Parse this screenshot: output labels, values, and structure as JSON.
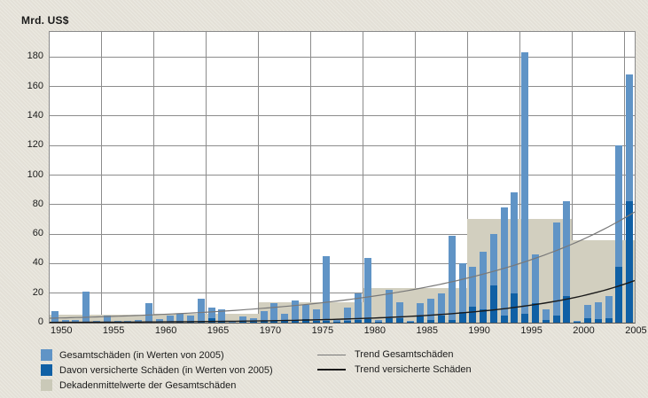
{
  "chart_title": "Mrd. US$",
  "colors": {
    "background": "#e7e4da",
    "plot_background": "#ffffff",
    "grid": "#8c8c8c",
    "bar_total": "#6094c6",
    "bar_insured": "#1060a5",
    "decade_block": "#d2cfbf",
    "trend_total": "#787878",
    "trend_insured": "#1a1a1a",
    "text": "#1a1a1a"
  },
  "legend": {
    "items": [
      {
        "label": "Gesamtschäden (in Werten von 2005)",
        "type": "swatch",
        "color": "#6094c6"
      },
      {
        "label": "Davon versicherte Schäden (in Werten von 2005)",
        "type": "swatch",
        "color": "#1060a5"
      },
      {
        "label": "Dekadenmittelwerte der Gesamtschäden",
        "type": "swatch",
        "color": "#cac9b8"
      },
      {
        "label": "Trend Gesamtschäden",
        "type": "line",
        "color": "#787878"
      },
      {
        "label": "Trend versicherte Schäden",
        "type": "line",
        "color": "#1a1a1a"
      }
    ]
  },
  "chart_data": {
    "type": "bar",
    "title": "Mrd. US$",
    "ylabel": "Mrd. US$",
    "xlabel": "",
    "grid": true,
    "legend_position": "bottom",
    "ylim": [
      0,
      197
    ],
    "yticks": [
      0,
      20,
      40,
      60,
      80,
      100,
      120,
      140,
      160,
      180
    ],
    "xticks": [
      1950,
      1955,
      1960,
      1965,
      1970,
      1975,
      1980,
      1985,
      1990,
      1995,
      2000,
      2005
    ],
    "years": [
      1950,
      1951,
      1952,
      1953,
      1954,
      1955,
      1956,
      1957,
      1958,
      1959,
      1960,
      1961,
      1962,
      1963,
      1964,
      1965,
      1966,
      1967,
      1968,
      1969,
      1970,
      1971,
      1972,
      1973,
      1974,
      1975,
      1976,
      1977,
      1978,
      1979,
      1980,
      1981,
      1982,
      1983,
      1984,
      1985,
      1986,
      1987,
      1988,
      1989,
      1990,
      1991,
      1992,
      1993,
      1994,
      1995,
      1996,
      1997,
      1998,
      1999,
      2000,
      2001,
      2002,
      2003,
      2004,
      2005
    ],
    "series": [
      {
        "name": "Gesamtschäden (in Werten von 2005)",
        "values": [
          8,
          2,
          2,
          21,
          1.5,
          5,
          1,
          1,
          2,
          13,
          2.5,
          5,
          6,
          5,
          16,
          10,
          9,
          1.5,
          4,
          3,
          8,
          13,
          6,
          15,
          12,
          9,
          45,
          2,
          10,
          20,
          44,
          2,
          22,
          14,
          1.5,
          13,
          16,
          20,
          59,
          40,
          38,
          48,
          60,
          78,
          88,
          183,
          46,
          9,
          68,
          82,
          1.5,
          12,
          14,
          18,
          120,
          168
        ]
      },
      {
        "name": "Davon versicherte Schäden (in Werten von 2005)",
        "values": [
          0,
          0,
          0,
          0,
          0,
          0,
          0,
          0,
          0,
          0.3,
          0.2,
          0.3,
          0.5,
          0.4,
          0.6,
          3,
          1,
          0.3,
          0.8,
          0.8,
          1,
          1,
          1.2,
          2,
          2.5,
          1,
          1,
          0.4,
          1.5,
          2,
          2.5,
          0.5,
          3,
          3,
          0.5,
          4,
          2,
          5,
          2,
          7,
          11,
          9,
          25,
          5,
          20,
          6,
          13,
          2,
          5,
          18,
          0.5,
          3,
          2.5,
          3,
          38,
          82
        ]
      }
    ],
    "decade_means": [
      {
        "from": 1950,
        "to": 1959,
        "value": 5.7
      },
      {
        "from": 1960,
        "to": 1969,
        "value": 6.2
      },
      {
        "from": 1970,
        "to": 1979,
        "value": 14.0
      },
      {
        "from": 1980,
        "to": 1989,
        "value": 23.2
      },
      {
        "from": 1990,
        "to": 1999,
        "value": 70.0
      },
      {
        "from": 2000,
        "to": 2005,
        "value": 55.6
      }
    ],
    "trends": [
      {
        "name": "Trend Gesamtschäden",
        "color": "#787878",
        "width": 1.2,
        "x": [
          1950,
          1955,
          1960,
          1965,
          1970,
          1975,
          1980,
          1985,
          1990,
          1995,
          2000,
          2005
        ],
        "values": [
          3,
          4,
          5.4,
          7.2,
          9.7,
          13,
          17.5,
          23.5,
          31.5,
          42,
          56,
          75
        ]
      },
      {
        "name": "Trend versicherte Schäden",
        "color": "#1a1a1a",
        "width": 1.4,
        "x": [
          1950,
          1955,
          1960,
          1965,
          1970,
          1975,
          1980,
          1985,
          1990,
          1995,
          2000,
          2005
        ],
        "values": [
          0.2,
          0.3,
          0.5,
          0.8,
          1.2,
          1.9,
          3,
          4.7,
          7.4,
          11.6,
          18,
          28.5
        ]
      }
    ]
  }
}
